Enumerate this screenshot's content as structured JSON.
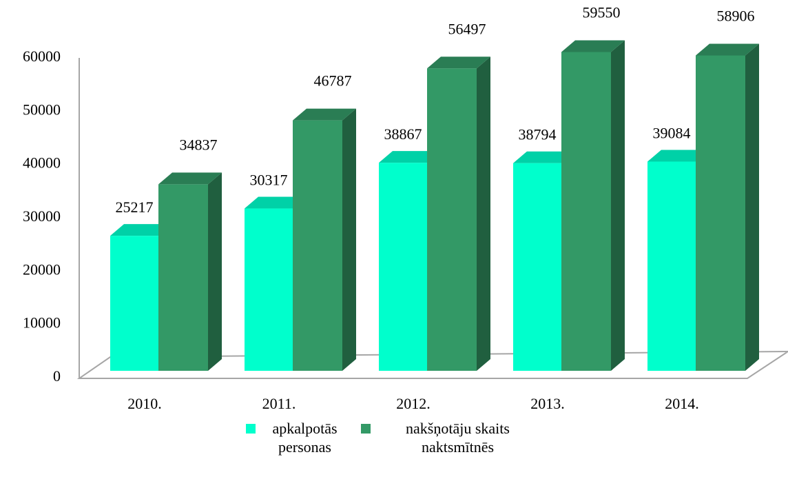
{
  "chart_data": {
    "type": "bar3d",
    "categories": [
      "2010.",
      "2011.",
      "2012.",
      "2013.",
      "2014."
    ],
    "series": [
      {
        "name": "apkalpotās personas",
        "color": "#00ffcc",
        "values": [
          25217,
          30317,
          38867,
          38794,
          39084
        ]
      },
      {
        "name": "nakšņotāju skaits naktsmītnēs",
        "color": "#339966",
        "values": [
          34837,
          46787,
          56497,
          59550,
          58906
        ]
      }
    ],
    "ylim": [
      0,
      60000
    ],
    "yticks": [
      0,
      10000,
      20000,
      30000,
      40000,
      50000,
      60000
    ],
    "grid": false,
    "legend": "bottom"
  }
}
